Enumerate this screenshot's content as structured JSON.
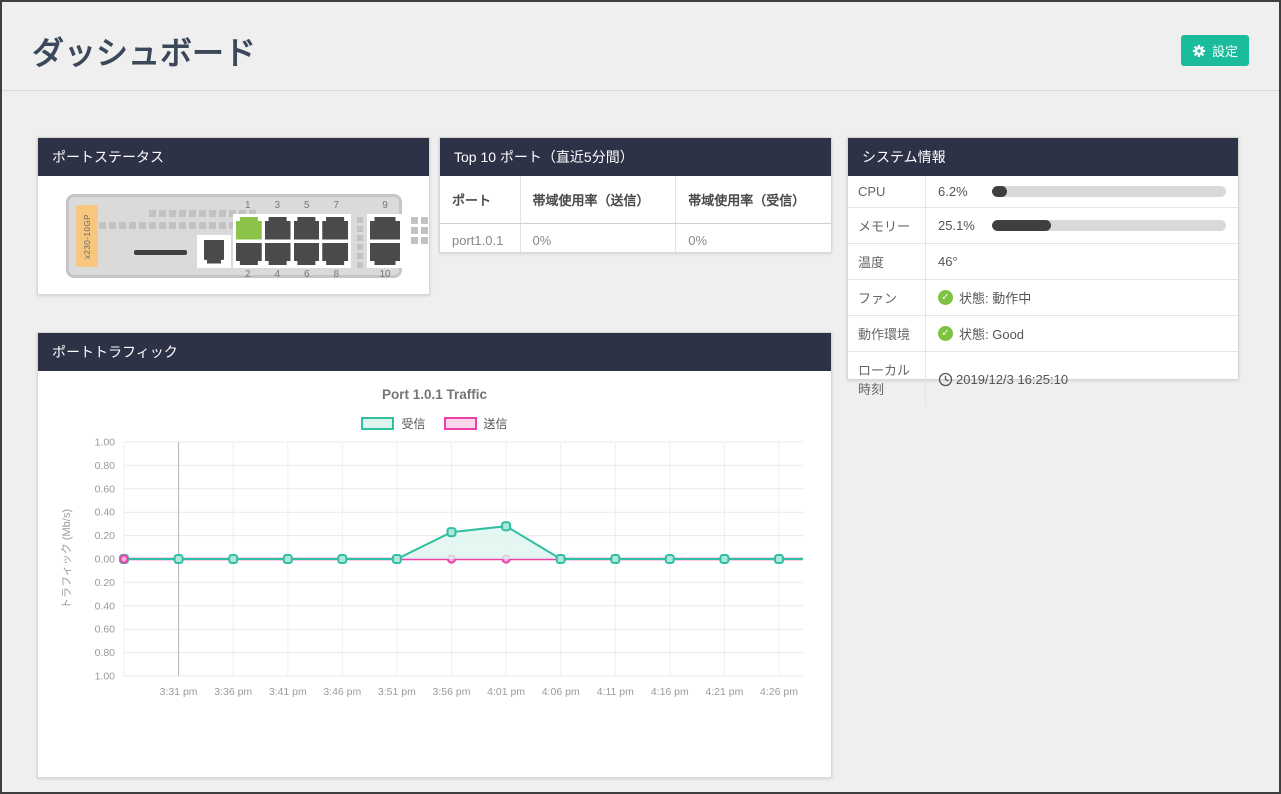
{
  "page_title": "ダッシュボード",
  "header": {
    "settings_button": "設定"
  },
  "panels": {
    "port_status": {
      "title": "ポートステータス",
      "device_model": "x230-10GP",
      "ports_rj45": [
        {
          "n": "1",
          "status": "up"
        },
        {
          "n": "2",
          "status": "down"
        },
        {
          "n": "3",
          "status": "down"
        },
        {
          "n": "4",
          "status": "down"
        },
        {
          "n": "5",
          "status": "down"
        },
        {
          "n": "6",
          "status": "down"
        },
        {
          "n": "7",
          "status": "down"
        },
        {
          "n": "8",
          "status": "down"
        }
      ],
      "ports_sfp": [
        {
          "n": "9",
          "status": "down"
        },
        {
          "n": "10",
          "status": "down"
        }
      ],
      "port_colors": {
        "up": "#8bc34a",
        "down": "#4a4a4a"
      }
    },
    "top_ports": {
      "title": "Top 10 ポート（直近5分間）",
      "columns": [
        "ポート",
        "帯域使用率（送信）",
        "帯域使用率（受信）"
      ],
      "rows": [
        [
          "port1.0.1",
          "0%",
          "0%"
        ]
      ]
    },
    "system_info": {
      "title": "システム情報",
      "rows": [
        {
          "label": "CPU",
          "value": "6.2%",
          "bar_percent": 6.2
        },
        {
          "label": "メモリー",
          "value": "25.1%",
          "bar_percent": 25.1
        },
        {
          "label": "温度",
          "value": "46°"
        },
        {
          "label": "ファン",
          "value": "状態: 動作中",
          "icon": "check"
        },
        {
          "label": "動作環境",
          "value": "状態: Good",
          "icon": "check"
        },
        {
          "label": "ローカル時刻",
          "value": "2019/12/3 16:25:10",
          "icon": "clock"
        }
      ],
      "status_green": "#7dc243",
      "bar_color": "#3f3f3f"
    },
    "port_traffic": {
      "title": "ポートトラフィック"
    }
  },
  "chart_data": {
    "type": "area",
    "title": "Port 1.0.1 Traffic",
    "ylabel": "トラフィック (Mb/s)",
    "x": [
      "",
      "3:31 pm",
      "3:36 pm",
      "3:41 pm",
      "3:46 pm",
      "3:51 pm",
      "3:56 pm",
      "4:01 pm",
      "4:06 pm",
      "4:11 pm",
      "4:16 pm",
      "4:21 pm",
      "4:26 pm"
    ],
    "series": [
      {
        "name": "受信",
        "color": "#2fc0a4",
        "fill": "#def5ef",
        "marker_fill": "#b2e6da",
        "values": [
          0,
          0,
          0,
          0,
          0,
          0,
          0.23,
          0.28,
          0,
          0,
          0,
          0,
          0
        ]
      },
      {
        "name": "送信",
        "color": "#ec3fa7",
        "fill": "#fbd7ee",
        "marker_fill": "#f7b4dd",
        "values": [
          0,
          0,
          0,
          0,
          0,
          0,
          0,
          0,
          0,
          0,
          0,
          0,
          0
        ]
      }
    ],
    "y_ticks": [
      "1.00",
      "0.80",
      "0.60",
      "0.40",
      "0.20",
      "0.00",
      "0.20",
      "0.40",
      "0.60",
      "0.80",
      "1.00"
    ],
    "ylim": [
      -1,
      1
    ],
    "grid": true,
    "legend_position": "top"
  },
  "accent_color": "#1abc9c",
  "panel_header_color": "#2e3247"
}
